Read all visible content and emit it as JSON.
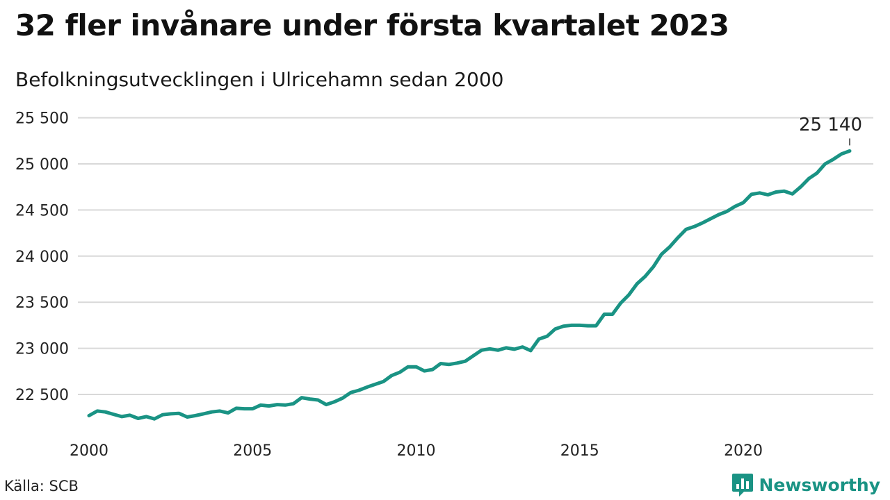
{
  "colors": {
    "line": "#1a9384",
    "grid": "#d9d9d9",
    "text": "#1a1a1a",
    "brand": "#1a9384"
  },
  "source_text": "Källa: SCB",
  "brand": {
    "name": "Newsworthy",
    "icon": "chart-logo-icon"
  },
  "chart_data": {
    "type": "line",
    "title": "32 fler invånare under första kvartalet 2023",
    "subtitle": "Befolkningsutvecklingen i Ulricehamn sedan 2000",
    "xlabel": "",
    "ylabel": "",
    "xlim": [
      2000,
      2023.25
    ],
    "ylim": [
      22250,
      25500
    ],
    "yticks": [
      22500,
      23000,
      23500,
      24000,
      24500,
      25000,
      25500
    ],
    "ytick_labels": [
      "22 500",
      "23 000",
      "23 500",
      "24 000",
      "24 500",
      "25 000",
      "25 500"
    ],
    "xticks": [
      2000,
      2005,
      2010,
      2015,
      2020
    ],
    "xtick_labels": [
      "2000",
      "2005",
      "2010",
      "2015",
      "2020"
    ],
    "grid": true,
    "legend": "none",
    "end_label": "25 140",
    "series": [
      {
        "values": [
          [
            2000.0,
            22270
          ],
          [
            2000.25,
            22320
          ],
          [
            2000.5,
            22310
          ],
          [
            2000.75,
            22285
          ],
          [
            2001.0,
            22260
          ],
          [
            2001.25,
            22275
          ],
          [
            2001.5,
            22240
          ],
          [
            2001.75,
            22260
          ],
          [
            2002.0,
            22235
          ],
          [
            2002.25,
            22280
          ],
          [
            2002.5,
            22290
          ],
          [
            2002.75,
            22295
          ],
          [
            2003.0,
            22255
          ],
          [
            2003.25,
            22270
          ],
          [
            2003.5,
            22290
          ],
          [
            2003.75,
            22310
          ],
          [
            2004.0,
            22320
          ],
          [
            2004.25,
            22300
          ],
          [
            2004.5,
            22350
          ],
          [
            2004.75,
            22345
          ],
          [
            2005.0,
            22345
          ],
          [
            2005.25,
            22385
          ],
          [
            2005.5,
            22375
          ],
          [
            2005.75,
            22390
          ],
          [
            2006.0,
            22385
          ],
          [
            2006.25,
            22400
          ],
          [
            2006.5,
            22465
          ],
          [
            2006.75,
            22450
          ],
          [
            2007.0,
            22440
          ],
          [
            2007.25,
            22390
          ],
          [
            2007.5,
            22420
          ],
          [
            2007.75,
            22460
          ],
          [
            2008.0,
            22520
          ],
          [
            2008.25,
            22545
          ],
          [
            2008.5,
            22580
          ],
          [
            2008.75,
            22610
          ],
          [
            2009.0,
            22640
          ],
          [
            2009.25,
            22705
          ],
          [
            2009.5,
            22740
          ],
          [
            2009.75,
            22800
          ],
          [
            2010.0,
            22800
          ],
          [
            2010.25,
            22755
          ],
          [
            2010.5,
            22770
          ],
          [
            2010.75,
            22835
          ],
          [
            2011.0,
            22825
          ],
          [
            2011.25,
            22840
          ],
          [
            2011.5,
            22860
          ],
          [
            2011.75,
            22920
          ],
          [
            2012.0,
            22980
          ],
          [
            2012.25,
            22995
          ],
          [
            2012.5,
            22980
          ],
          [
            2012.75,
            23005
          ],
          [
            2013.0,
            22990
          ],
          [
            2013.25,
            23015
          ],
          [
            2013.5,
            22975
          ],
          [
            2013.75,
            23100
          ],
          [
            2014.0,
            23130
          ],
          [
            2014.25,
            23210
          ],
          [
            2014.5,
            23240
          ],
          [
            2014.75,
            23250
          ],
          [
            2015.0,
            23250
          ],
          [
            2015.25,
            23245
          ],
          [
            2015.5,
            23245
          ],
          [
            2015.75,
            23370
          ],
          [
            2016.0,
            23370
          ],
          [
            2016.25,
            23490
          ],
          [
            2016.5,
            23580
          ],
          [
            2016.75,
            23700
          ],
          [
            2017.0,
            23780
          ],
          [
            2017.25,
            23885
          ],
          [
            2017.5,
            24020
          ],
          [
            2017.75,
            24100
          ],
          [
            2018.0,
            24200
          ],
          [
            2018.25,
            24290
          ],
          [
            2018.5,
            24320
          ],
          [
            2018.75,
            24360
          ],
          [
            2019.0,
            24405
          ],
          [
            2019.25,
            24450
          ],
          [
            2019.5,
            24485
          ],
          [
            2019.75,
            24540
          ],
          [
            2020.0,
            24580
          ],
          [
            2020.25,
            24670
          ],
          [
            2020.5,
            24685
          ],
          [
            2020.75,
            24665
          ],
          [
            2021.0,
            24695
          ],
          [
            2021.25,
            24705
          ],
          [
            2021.5,
            24675
          ],
          [
            2021.75,
            24750
          ],
          [
            2022.0,
            24840
          ],
          [
            2022.25,
            24900
          ],
          [
            2022.5,
            25000
          ],
          [
            2022.75,
            25050
          ],
          [
            2023.0,
            25108
          ],
          [
            2023.25,
            25140
          ]
        ]
      }
    ]
  }
}
